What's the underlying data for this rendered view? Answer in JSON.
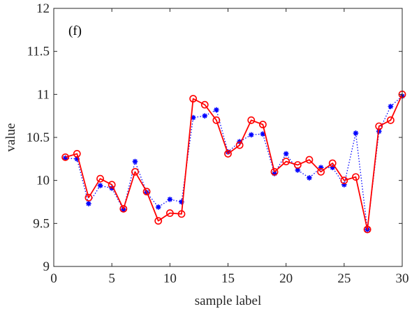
{
  "chart_data": {
    "type": "line",
    "panel_label": "(f)",
    "xlabel": "sample label",
    "ylabel": "value",
    "xlim": [
      0,
      30
    ],
    "ylim": [
      9,
      12
    ],
    "xticks": [
      0,
      5,
      10,
      15,
      20,
      25,
      30
    ],
    "yticks": [
      9,
      9.5,
      10,
      10.5,
      11,
      11.5,
      12
    ],
    "ytick_labels": [
      "9",
      "9.5",
      "10",
      "10.5",
      "11",
      "11.5",
      "12"
    ],
    "x": [
      1,
      2,
      3,
      4,
      5,
      6,
      7,
      8,
      9,
      10,
      11,
      12,
      13,
      14,
      15,
      16,
      17,
      18,
      19,
      20,
      21,
      22,
      23,
      24,
      25,
      26,
      27,
      28,
      29,
      30
    ],
    "series": [
      {
        "style": "blue dotted line with asterisk markers",
        "color": "#0000ff",
        "values": [
          10.26,
          10.25,
          9.73,
          9.94,
          9.91,
          9.66,
          10.22,
          9.86,
          9.69,
          9.78,
          9.75,
          10.73,
          10.75,
          10.82,
          10.33,
          10.45,
          10.53,
          10.54,
          10.08,
          10.31,
          10.12,
          10.03,
          10.15,
          10.15,
          9.95,
          10.55,
          9.43,
          10.57,
          10.86,
          10.98
        ]
      },
      {
        "style": "red solid line with circle markers",
        "color": "#ff0000",
        "values": [
          10.27,
          10.31,
          9.8,
          10.02,
          9.95,
          9.67,
          10.1,
          9.87,
          9.53,
          9.62,
          9.61,
          10.95,
          10.88,
          10.7,
          10.31,
          10.41,
          10.7,
          10.65,
          10.1,
          10.22,
          10.18,
          10.24,
          10.1,
          10.2,
          10.0,
          10.04,
          9.43,
          10.63,
          10.7,
          11.0
        ]
      }
    ],
    "grid": false,
    "legend": "none"
  }
}
